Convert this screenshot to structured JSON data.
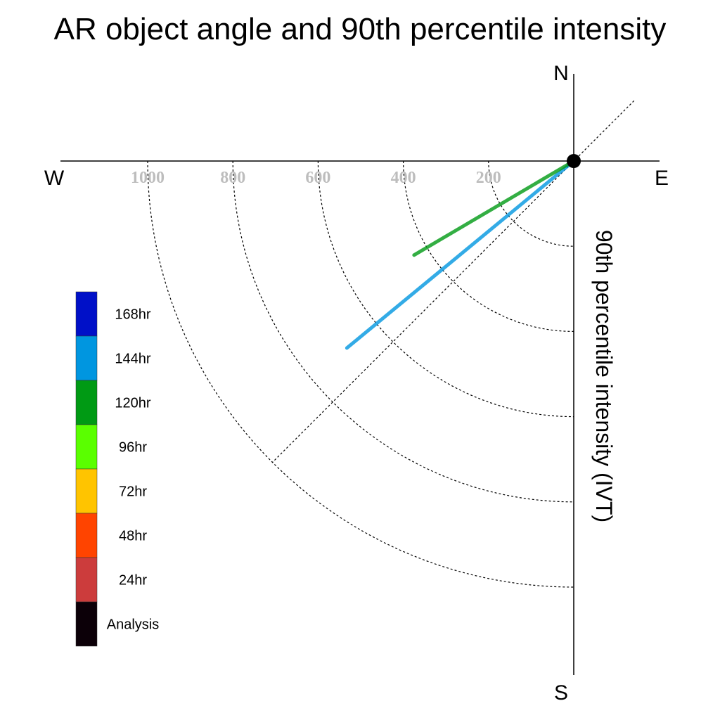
{
  "chart_data": {
    "type": "polar-quadrant-line",
    "title": "AR object angle and 90th percentile intensity",
    "ylabel": "90th percentile intensity (IVT)",
    "compass": {
      "north": "N",
      "south": "S",
      "east": "E",
      "west": "W"
    },
    "radial_ticks": [
      200,
      400,
      600,
      800,
      1000
    ],
    "radial_max": 1200,
    "grid": true,
    "reference_angle_deg": 45,
    "legend": {
      "placement": "left",
      "entries": [
        {
          "label": "168hr",
          "color": "#0010c8"
        },
        {
          "label": "144hr",
          "color": "#0096e0"
        },
        {
          "label": "120hr",
          "color": "#009a14"
        },
        {
          "label": "96hr",
          "color": "#5aff00"
        },
        {
          "label": "72hr",
          "color": "#ffc400"
        },
        {
          "label": "48hr",
          "color": "#ff4400"
        },
        {
          "label": "24hr",
          "color": "#cc3c3c"
        },
        {
          "label": "Analysis",
          "color": "#0c0008"
        }
      ]
    },
    "series": [
      {
        "label": "144hr",
        "color": "#0096e0",
        "angle_deg": 39.5,
        "intensity": 690
      },
      {
        "label": "120hr",
        "color": "#009a14",
        "angle_deg": 30.5,
        "intensity": 435
      }
    ]
  }
}
